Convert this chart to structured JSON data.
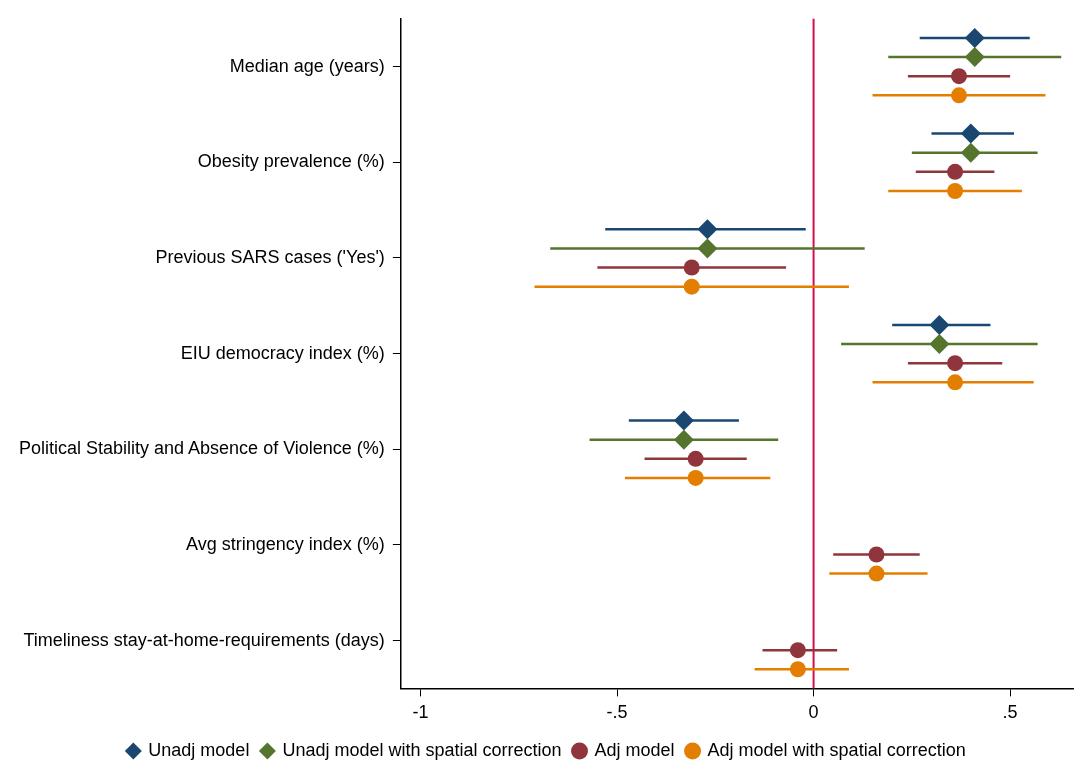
{
  "chart_data": {
    "type": "scatter",
    "orientation": "horizontal",
    "categories": [
      "Median age (years)",
      "Obesity prevalence (%)",
      "Previous SARS cases ('Yes')",
      "EIU democracy index (%)",
      "Political Stability and Absence of Violence (%)",
      "Avg stringency index (%)",
      "Timeliness stay-at-home-requirements (days)"
    ],
    "series": [
      {
        "name": "Unadj model",
        "color": "#1a476f",
        "marker": "diamond",
        "values": [
          0.41,
          0.4,
          -0.27,
          0.32,
          -0.33,
          null,
          null
        ],
        "errors": [
          [
            0.27,
            0.55
          ],
          [
            0.3,
            0.51
          ],
          [
            -0.53,
            -0.02
          ],
          [
            0.2,
            0.45
          ],
          [
            -0.47,
            -0.19
          ],
          null,
          null
        ]
      },
      {
        "name": "Unadj model with spatial correction",
        "color": "#55752f",
        "marker": "diamond",
        "values": [
          0.41,
          0.4,
          -0.27,
          0.32,
          -0.33,
          null,
          null
        ],
        "errors": [
          [
            0.19,
            0.63
          ],
          [
            0.25,
            0.57
          ],
          [
            -0.67,
            0.13
          ],
          [
            0.07,
            0.57
          ],
          [
            -0.57,
            -0.09
          ],
          null,
          null
        ]
      },
      {
        "name": "Adj model",
        "color": "#90353b",
        "marker": "circle",
        "values": [
          0.37,
          0.36,
          -0.31,
          0.36,
          -0.3,
          0.16,
          -0.04
        ],
        "errors": [
          [
            0.24,
            0.5
          ],
          [
            0.26,
            0.46
          ],
          [
            -0.55,
            -0.07
          ],
          [
            0.24,
            0.48
          ],
          [
            -0.43,
            -0.17
          ],
          [
            0.05,
            0.27
          ],
          [
            -0.13,
            0.06
          ]
        ]
      },
      {
        "name": "Adj model with spatial correction",
        "color": "#e37e00",
        "marker": "circle",
        "values": [
          0.37,
          0.36,
          -0.31,
          0.36,
          -0.3,
          0.16,
          -0.04
        ],
        "errors": [
          [
            0.15,
            0.59
          ],
          [
            0.19,
            0.53
          ],
          [
            -0.71,
            0.09
          ],
          [
            0.15,
            0.56
          ],
          [
            -0.48,
            -0.11
          ],
          [
            0.04,
            0.29
          ],
          [
            -0.15,
            0.09
          ]
        ]
      }
    ],
    "xlim": [
      -1.05,
      0.66
    ],
    "xticks": [
      {
        "value": -1,
        "label": "-1"
      },
      {
        "value": -0.5,
        "label": "-.5"
      },
      {
        "value": 0,
        "label": "0"
      },
      {
        "value": 0.5,
        "label": ".5"
      }
    ],
    "ref_lines": [
      {
        "axis": "x",
        "value": 0,
        "color": "#d0104c"
      }
    ],
    "grid": false,
    "legend": "bottom"
  }
}
